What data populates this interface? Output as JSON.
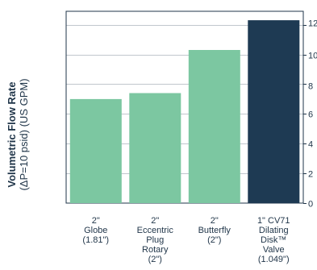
{
  "chart_data": {
    "type": "bar",
    "ylabel_line1": "Volumetric Flow Rate",
    "ylabel_line2": "(ΔP=10 psid) (US GPM)",
    "categories": [
      "2\"\nGlobe\n(1.81\")",
      "2\"\nEccentric\nPlug\nRotary\n(2\")",
      "2\"\nButterfly\n(2\")",
      "1\" CV71\nDilating\nDisk™\nValve\n(1.049\")"
    ],
    "values": [
      7.0,
      7.4,
      10.3,
      12.3
    ],
    "y_ticks": [
      "0",
      "2",
      "4",
      "6",
      "8",
      "10",
      "12"
    ],
    "y_tick_values": [
      0,
      2,
      4,
      6,
      8,
      10,
      12
    ],
    "ylim": [
      0,
      12.9
    ],
    "y_axis_side": "right",
    "grid": true,
    "colors": {
      "bar_standard": "#7cc7a1",
      "bar_highlight": "#1e3a53",
      "axis": "#1f3448",
      "grid": "#1f3448"
    },
    "highlight_index": 3
  }
}
